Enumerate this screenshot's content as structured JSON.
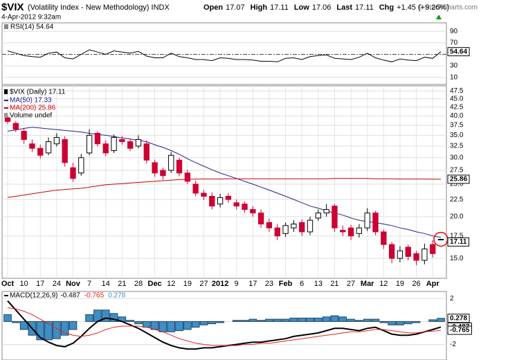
{
  "header": {
    "symbol": "$VIX",
    "name": "(Volatility Index - New Methodology) INDX",
    "datetime": "4-Apr-2012 9:32am",
    "quote": [
      {
        "label": "Open",
        "value": "17.07"
      },
      {
        "label": "High",
        "value": "17.11"
      },
      {
        "label": "Low",
        "value": "17.06"
      },
      {
        "label": "Last",
        "value": "17.11"
      },
      {
        "label": "Chg",
        "value": "+1.45 (+9.26%)"
      }
    ],
    "copyright": "© StockCharts.com"
  },
  "chart_data": [
    {
      "type": "line",
      "title": "RSI(14) 54.64",
      "ylim": [
        0,
        100
      ],
      "yticks": [
        10,
        30,
        70,
        90
      ],
      "grid": true,
      "midline": 50,
      "last_label": "54.64",
      "series": [
        {
          "color": "#000000",
          "values": [
            56,
            52,
            48,
            46,
            45,
            52,
            54,
            44,
            42,
            50,
            58,
            54,
            50,
            56,
            54,
            52,
            55,
            47,
            44,
            44,
            52,
            46,
            44,
            41,
            41,
            39,
            44,
            43,
            41,
            41,
            40,
            38,
            38,
            37,
            43,
            44,
            41,
            46,
            48,
            49,
            43,
            42,
            41,
            45,
            52,
            44,
            40,
            37,
            42,
            40,
            39,
            45,
            43,
            54.64
          ]
        }
      ]
    },
    {
      "type": "candlestick",
      "title": "$VIX (Daily) 17.11",
      "volume_label": "Volume undef",
      "log": true,
      "grid": true,
      "ylim": [
        13.2,
        48.5
      ],
      "yticks": [
        {
          "value": 15,
          "label": "15.0"
        },
        17.5,
        {
          "value": 20,
          "label": "20.0"
        },
        22.5,
        {
          "value": 25,
          "label": "25.0"
        },
        27.5,
        {
          "value": 30,
          "label": "30.0"
        },
        32.5,
        {
          "value": 35,
          "label": "35.0"
        },
        37.5,
        {
          "value": 40,
          "label": "40.0"
        },
        42.5,
        {
          "value": 45,
          "label": "45.0"
        },
        47.5
      ],
      "up_color": "#000000",
      "down_color": "#cc0033",
      "categories": [
        "Oct",
        null,
        "10",
        null,
        "17",
        null,
        "24",
        null,
        "Nov",
        null,
        "7",
        null,
        "14",
        null,
        "21",
        null,
        "28",
        null,
        "Dec",
        null,
        "12",
        null,
        "19",
        null,
        "27",
        null,
        "2012",
        null,
        "9",
        null,
        "17",
        null,
        "23",
        null,
        "Feb",
        null,
        "6",
        null,
        "13",
        null,
        "21",
        null,
        "27",
        null,
        "Mar",
        null,
        "12",
        null,
        "19",
        null,
        "26",
        null,
        "Apr",
        null
      ],
      "open": [
        39.5,
        38.0,
        36.0,
        33.0,
        32.0,
        31.0,
        33.0,
        34.0,
        28.0,
        27.0,
        31.0,
        35.5,
        33.0,
        31.5,
        34.0,
        33.5,
        32.5,
        33.0,
        29.0,
        27.5,
        27.5,
        29.5,
        27.0,
        25.0,
        23.5,
        23.0,
        21.8,
        23.0,
        22.0,
        21.8,
        21.0,
        20.5,
        19.2,
        18.5,
        17.8,
        18.5,
        19.2,
        18.0,
        19.8,
        20.5,
        21.5,
        18.2,
        18.5,
        17.8,
        18.5,
        20.5,
        18.0,
        16.5,
        15.0,
        16.2,
        15.5,
        14.8,
        16.5,
        17.07
      ],
      "high": [
        40.2,
        38.6,
        36.8,
        34.0,
        32.8,
        34.5,
        35.5,
        34.8,
        29.0,
        30.8,
        36.5,
        36.0,
        33.8,
        35.2,
        34.8,
        34.2,
        35.0,
        33.8,
        29.6,
        28.0,
        31.2,
        30.0,
        27.6,
        25.6,
        24.0,
        23.6,
        23.4,
        23.5,
        22.5,
        22.2,
        21.5,
        21.0,
        19.7,
        19.0,
        19.2,
        19.5,
        19.6,
        20.0,
        21.0,
        21.8,
        21.8,
        18.8,
        18.9,
        19.0,
        21.2,
        20.8,
        18.3,
        16.8,
        16.3,
        16.5,
        15.8,
        16.6,
        17.0,
        17.11
      ],
      "low": [
        37.8,
        35.8,
        33.0,
        31.2,
        29.8,
        30.5,
        32.4,
        28.2,
        25.4,
        26.5,
        30.5,
        32.4,
        30.3,
        31.0,
        32.8,
        31.4,
        32.0,
        28.8,
        26.3,
        25.8,
        27.0,
        26.4,
        25.0,
        23.0,
        22.4,
        21.0,
        21.3,
        22.0,
        21.0,
        20.5,
        20.0,
        18.5,
        18.0,
        17.0,
        17.4,
        18.0,
        17.5,
        17.6,
        19.4,
        20.0,
        18.0,
        17.5,
        17.0,
        17.3,
        18.1,
        17.6,
        16.0,
        14.5,
        14.6,
        14.8,
        14.3,
        14.4,
        15.1,
        17.06
      ],
      "close": [
        38.5,
        36.5,
        34.0,
        32.0,
        30.5,
        33.5,
        34.5,
        29.0,
        26.0,
        30.0,
        35.0,
        33.0,
        31.0,
        34.5,
        33.5,
        32.0,
        34.0,
        29.5,
        27.0,
        26.5,
        30.5,
        27.0,
        25.5,
        23.5,
        23.0,
        21.5,
        22.8,
        22.5,
        21.5,
        21.0,
        20.5,
        19.0,
        18.5,
        17.5,
        18.8,
        19.0,
        18.0,
        19.5,
        20.5,
        21.0,
        18.5,
        18.0,
        17.5,
        18.5,
        20.5,
        18.0,
        16.5,
        15.0,
        15.8,
        15.2,
        14.8,
        16.0,
        15.5,
        17.11
      ],
      "last_label": "17.11",
      "series": [
        {
          "name": "MA(50) 17.33",
          "color": "#22228a",
          "values": [
            36.0,
            36.3,
            36.7,
            37.0,
            36.8,
            36.6,
            36.4,
            36.2,
            36.0,
            35.8,
            35.5,
            35.2,
            35.0,
            34.7,
            34.4,
            34.1,
            33.8,
            33.5,
            32.8,
            32.2,
            31.5,
            30.7,
            29.8,
            29.0,
            28.3,
            27.6,
            27.0,
            26.5,
            26.0,
            25.5,
            25.0,
            24.5,
            24.0,
            23.5,
            23.0,
            22.5,
            22.0,
            21.5,
            21.2,
            20.8,
            20.5,
            20.2,
            19.8,
            19.5,
            19.3,
            19.2,
            19.0,
            18.8,
            18.5,
            18.3,
            18.0,
            17.8,
            17.5,
            17.33
          ]
        },
        {
          "name": "MA(200) 25.86",
          "color": "#cc0000",
          "last_label": "25.86",
          "values": [
            22.8,
            23.0,
            23.2,
            23.4,
            23.6,
            23.8,
            24.0,
            24.1,
            24.2,
            24.3,
            24.5,
            24.7,
            24.9,
            25.0,
            25.1,
            25.2,
            25.3,
            25.4,
            25.5,
            25.6,
            25.7,
            25.8,
            25.85,
            25.9,
            25.9,
            25.9,
            25.9,
            25.95,
            25.95,
            25.95,
            25.95,
            25.95,
            25.95,
            25.95,
            25.95,
            25.95,
            25.95,
            25.95,
            25.95,
            25.95,
            26.0,
            26.0,
            26.0,
            26.0,
            26.0,
            25.95,
            25.95,
            25.95,
            25.9,
            25.9,
            25.9,
            25.9,
            25.88,
            25.86
          ]
        }
      ]
    },
    {
      "type": "macd",
      "title": "MACD(12,26,9)",
      "ylim": [
        -3.3,
        2.5
      ],
      "yticks": [
        -2,
        0,
        2
      ],
      "grid": true,
      "series": [
        {
          "name": "-0.487",
          "color": "#000000",
          "values": [
            1.8,
            1.0,
            0.2,
            -0.6,
            -1.4,
            -1.8,
            -2.1,
            -2.2,
            -1.9,
            -1.3,
            -0.6,
            0.0,
            0.3,
            0.2,
            0.0,
            -0.3,
            -0.6,
            -1.0,
            -1.4,
            -1.8,
            -2.1,
            -2.3,
            -2.4,
            -2.4,
            -2.3,
            -2.3,
            -2.2,
            -2.1,
            -2.0,
            -1.9,
            -1.8,
            -1.8,
            -1.7,
            -1.6,
            -1.5,
            -1.3,
            -1.2,
            -1.1,
            -1.0,
            -0.8,
            -0.6,
            -0.6,
            -0.7,
            -0.8,
            -0.6,
            -0.5,
            -0.8,
            -1.1,
            -1.2,
            -1.2,
            -1.1,
            -0.9,
            -0.7,
            -0.487
          ]
        },
        {
          "name": "-0.765",
          "color": "#e8201c",
          "values": [
            1.2,
            1.1,
            0.9,
            0.6,
            0.2,
            -0.2,
            -0.6,
            -1.0,
            -1.2,
            -1.3,
            -1.2,
            -1.0,
            -0.7,
            -0.5,
            -0.4,
            -0.4,
            -0.4,
            -0.5,
            -0.7,
            -0.9,
            -1.2,
            -1.5,
            -1.7,
            -1.9,
            -2.0,
            -2.1,
            -2.1,
            -2.1,
            -2.1,
            -2.0,
            -2.0,
            -1.9,
            -1.9,
            -1.8,
            -1.7,
            -1.6,
            -1.5,
            -1.4,
            -1.3,
            -1.2,
            -1.1,
            -1.0,
            -0.9,
            -0.9,
            -0.8,
            -0.7,
            -0.7,
            -0.8,
            -0.9,
            -1.0,
            -1.0,
            -0.9,
            -0.85,
            -0.765
          ]
        },
        {
          "name": "0.278",
          "color": "#3d8fc6",
          "histogram": true,
          "values": [
            0.6,
            -0.1,
            -0.7,
            -1.2,
            -1.6,
            -1.6,
            -1.5,
            -1.2,
            -0.7,
            0.0,
            0.6,
            1.0,
            1.0,
            0.7,
            0.4,
            0.1,
            -0.2,
            -0.5,
            -0.7,
            -0.9,
            -0.9,
            -0.8,
            -0.7,
            -0.5,
            -0.3,
            -0.2,
            -0.1,
            0.0,
            0.1,
            0.1,
            0.2,
            0.1,
            0.2,
            0.2,
            0.2,
            0.3,
            0.3,
            0.3,
            0.3,
            0.4,
            0.5,
            0.4,
            0.2,
            0.1,
            0.2,
            0.2,
            -0.1,
            -0.3,
            -0.3,
            -0.2,
            -0.1,
            0.0,
            0.15,
            0.278
          ]
        }
      ]
    }
  ]
}
